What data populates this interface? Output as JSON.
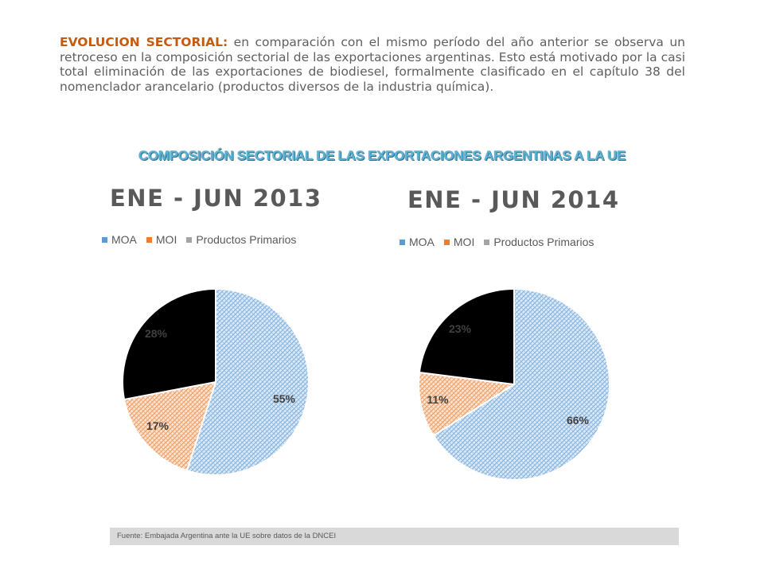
{
  "intro": {
    "lead": "EVOLUCION SECTORIAL:",
    "text": " en comparación con el mismo período del año anterior se observa un retroceso en la composición sectorial de las exportaciones argentinas. Esto está motivado por la casi total eliminación de las exportaciones de biodiesel, formalmente clasificado en el capítulo 38 del nomenclador arancelario (productos diversos de la industria química)."
  },
  "main_title": "COMPOSICIÓN SECTORIAL DE LAS EXPORTACIONES ARGENTINAS A LA UE",
  "colors": {
    "MOA": "#5b9bd5",
    "MOI": "#ed7d31",
    "Productos Primarios": "#a5a5a5"
  },
  "chart_data": [
    {
      "type": "pie",
      "title": "ENE - JUN 2013",
      "legend": "top",
      "categories": [
        "MOA",
        "MOI",
        "Productos Primarios"
      ],
      "values": [
        55,
        17,
        28
      ],
      "labels": [
        "55%",
        "17%",
        "28%"
      ]
    },
    {
      "type": "pie",
      "title": "ENE - JUN 2014",
      "legend": "top",
      "categories": [
        "MOA",
        "MOI",
        "Productos Primarios"
      ],
      "values": [
        66,
        11,
        23
      ],
      "labels": [
        "66%",
        "11%",
        "23%"
      ]
    }
  ],
  "source": "Fuente: Embajada  Argentina ante la UE sobre datos de la DNCEI"
}
